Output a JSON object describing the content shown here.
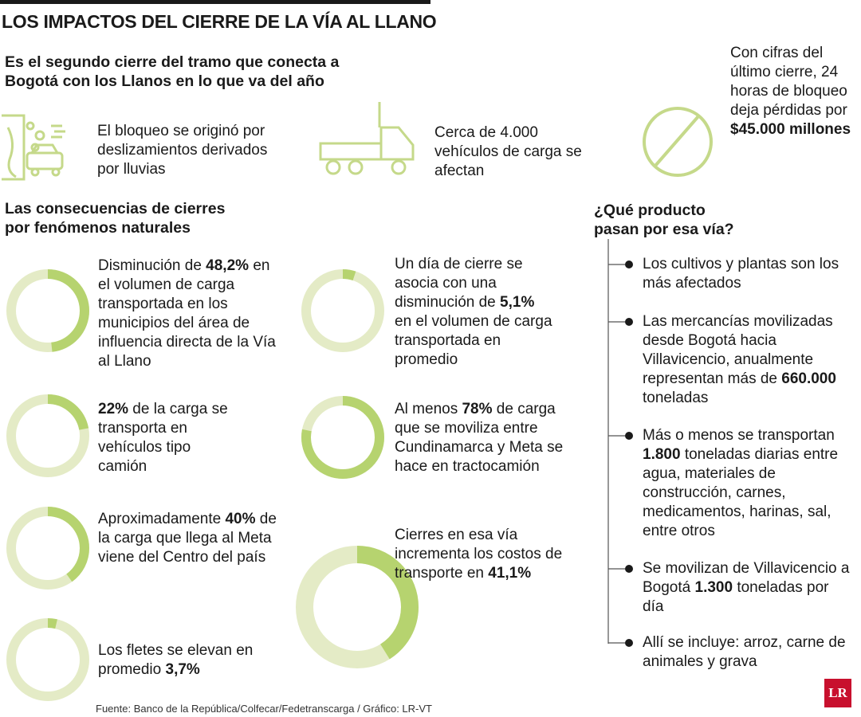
{
  "header": {
    "title": "LOS IMPACTOS DEL CIERRE DE LA VÍA AL LLANO",
    "subtitle": "Es el segundo cierre del tramo que conecta a Bogotá con los Llanos en lo que va del año"
  },
  "facts": [
    {
      "parts": [
        {
          "text": "El bloqueo se originó por deslizamientos derivados por lluvias"
        }
      ]
    },
    {
      "parts": [
        {
          "text": "Cerca de 4.000 vehículos de carga se afectan"
        }
      ]
    },
    {
      "parts": [
        {
          "text": "Con cifras del último cierre, 24 horas de bloqueo deja pérdidas por "
        },
        {
          "text": "$45.000 millones",
          "bold": true
        }
      ]
    }
  ],
  "consequences": {
    "title": "Las consecuencias de cierres por fenómenos naturales",
    "items": [
      {
        "value": 48.2,
        "parts": [
          {
            "text": "Disminución de "
          },
          {
            "text": "48,2%",
            "bold": true
          },
          {
            "text": " en el volumen de carga transportada en los municipios del área de influencia directa de la Vía al Llano"
          }
        ]
      },
      {
        "value": 22,
        "parts": [
          {
            "text": "22%",
            "bold": true
          },
          {
            "text": " de la carga se transporta en vehículos tipo camión"
          }
        ]
      },
      {
        "value": 40,
        "parts": [
          {
            "text": "Aproximadamente "
          },
          {
            "text": "40%",
            "bold": true
          },
          {
            "text": " de la carga que llega al Meta viene del Centro del país"
          }
        ]
      },
      {
        "value": 3.7,
        "parts": [
          {
            "text": "Los fletes se elevan en promedio "
          },
          {
            "text": "3,7%",
            "bold": true
          }
        ]
      },
      {
        "value": 5.1,
        "parts": [
          {
            "text": "Un día de cierre se asocia con una disminución de "
          },
          {
            "text": "5,1%",
            "bold": true
          },
          {
            "text": " en el volumen de carga transportada en promedio"
          }
        ]
      },
      {
        "value": 78,
        "parts": [
          {
            "text": "Al menos "
          },
          {
            "text": "78%",
            "bold": true
          },
          {
            "text": " de carga que se moviliza entre Cundinamarca y Meta se hace en tractocamión"
          }
        ]
      },
      {
        "value": 41.1,
        "parts": [
          {
            "text": "Cierres en esa vía incrementa los costos de transporte en "
          },
          {
            "text": "41,1%",
            "bold": true
          }
        ]
      }
    ]
  },
  "products": {
    "title": "¿Qué producto pasan por esa vía?",
    "items": [
      {
        "parts": [
          {
            "text": "Los cultivos y plantas son los más afectados"
          }
        ]
      },
      {
        "parts": [
          {
            "text": "Las mercancías movilizadas desde Bogotá hacia Villavicencio, anualmente representan más de "
          },
          {
            "text": "660.000",
            "bold": true
          },
          {
            "text": " toneladas"
          }
        ]
      },
      {
        "parts": [
          {
            "text": "Más o menos se transportan "
          },
          {
            "text": "1.800",
            "bold": true
          },
          {
            "text": " toneladas diarias entre agua, materiales de construcción, carnes, medicamentos, harinas, sal, entre otros"
          }
        ]
      },
      {
        "parts": [
          {
            "text": "Se movilizan de Villavicencio a Bogotá "
          },
          {
            "text": "1.300",
            "bold": true
          },
          {
            "text": " toneladas por día"
          }
        ]
      },
      {
        "parts": [
          {
            "text": "Allí se incluye: arroz, carne de animales y grava"
          }
        ]
      }
    ]
  },
  "source": "Fuente: Banco de la República/Colfecar/Fedetranscarga / Gráfico: LR-VT",
  "logo": "LR"
}
